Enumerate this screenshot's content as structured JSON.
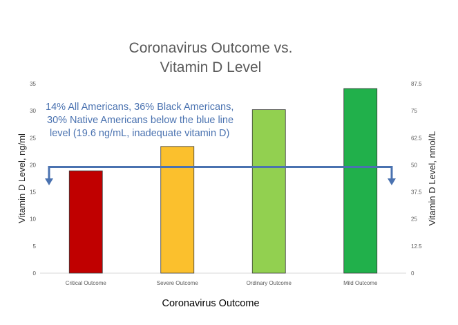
{
  "chart_data": {
    "type": "bar",
    "title_lines": [
      "Coronavirus Outcome vs.",
      "Vitamin D Level"
    ],
    "annotation_lines": [
      "14% All Americans, 36% Black Americans,",
      "30% Native Americans below the blue line",
      "level  (19.6 ng/mL, inadequate vitamin D)"
    ],
    "xlabel": "Coronavirus Outcome",
    "ylabel": "Vitamin D Level, ng/ml",
    "y2label": "Vitamin D Level, nmol/L",
    "categories": [
      "Critical Outcome",
      "Severe Outcome",
      "Ordinary Outcome",
      "Mild Outcome"
    ],
    "values": [
      18.9,
      23.4,
      30.2,
      34.1
    ],
    "bar_colors": [
      "#c00000",
      "#fbc02d",
      "#92d050",
      "#21b04b"
    ],
    "ylim": [
      0,
      35
    ],
    "yticks": [
      "0",
      "5",
      "10",
      "15",
      "20",
      "25",
      "30",
      "35"
    ],
    "y2lim": [
      0,
      87.5
    ],
    "y2ticks": [
      "0",
      "12.5",
      "25",
      "37.5",
      "50",
      "62.5",
      "75",
      "87.5"
    ],
    "threshold_value": 19.6,
    "threshold_color": "#4a72b0",
    "annotation_color": "#4a72b0",
    "grid": false
  }
}
